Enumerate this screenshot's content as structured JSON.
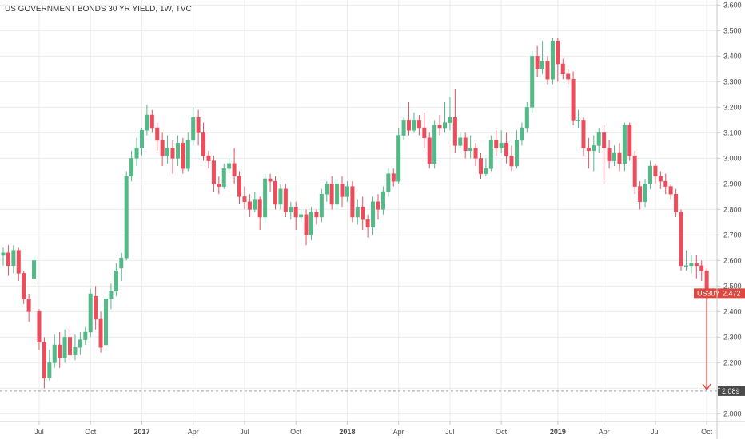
{
  "chart_data": {
    "type": "candlestick",
    "title": "US GOVERNMENT BONDS 30 YR YIELD, 1W, TVC",
    "ylim": [
      1.97,
      3.62
    ],
    "yticks": [
      2.0,
      2.1,
      2.2,
      2.3,
      2.4,
      2.5,
      2.6,
      2.7,
      2.8,
      2.9,
      3.0,
      3.1,
      3.2,
      3.3,
      3.4,
      3.5,
      3.6
    ],
    "ytick_labels": [
      "2.000",
      "2.100",
      "2.200",
      "2.300",
      "2.400",
      "2.500",
      "2.600",
      "2.700",
      "2.800",
      "2.900",
      "3.000",
      "3.100",
      "3.200",
      "3.300",
      "3.400",
      "3.500",
      "3.600"
    ],
    "x_labels": [
      {
        "label": "Jul",
        "week": 7,
        "bold": false
      },
      {
        "label": "Oct",
        "week": 17,
        "bold": false
      },
      {
        "label": "2017",
        "week": 27,
        "bold": true
      },
      {
        "label": "Apr",
        "week": 37,
        "bold": false
      },
      {
        "label": "Jul",
        "week": 47,
        "bold": false
      },
      {
        "label": "Oct",
        "week": 57,
        "bold": false
      },
      {
        "label": "2018",
        "week": 67,
        "bold": true
      },
      {
        "label": "Apr",
        "week": 77,
        "bold": false
      },
      {
        "label": "Jul",
        "week": 87,
        "bold": false
      },
      {
        "label": "Oct",
        "week": 97,
        "bold": false
      },
      {
        "label": "2019",
        "week": 108,
        "bold": true
      },
      {
        "label": "Apr",
        "week": 117,
        "bold": false
      },
      {
        "label": "Jul",
        "week": 127,
        "bold": false
      },
      {
        "label": "Oct",
        "week": 137,
        "bold": false
      }
    ],
    "x_range": [
      0,
      139
    ],
    "candles": [
      [
        2.62,
        2.63,
        2.58,
        2.65
      ],
      [
        2.63,
        2.58,
        2.54,
        2.66
      ],
      [
        2.58,
        2.64,
        2.55,
        2.66
      ],
      [
        2.64,
        2.55,
        2.52,
        2.65
      ],
      [
        2.55,
        2.45,
        2.43,
        2.56
      ],
      [
        2.45,
        2.4,
        2.36,
        2.47
      ],
      [
        2.53,
        2.6,
        2.51,
        2.62
      ],
      [
        2.4,
        2.28,
        2.25,
        2.41
      ],
      [
        2.28,
        2.14,
        2.1,
        2.3
      ],
      [
        2.14,
        2.2,
        2.13,
        2.25
      ],
      [
        2.2,
        2.27,
        2.18,
        2.31
      ],
      [
        2.27,
        2.22,
        2.18,
        2.32
      ],
      [
        2.22,
        2.3,
        2.2,
        2.33
      ],
      [
        2.3,
        2.23,
        2.21,
        2.34
      ],
      [
        2.23,
        2.26,
        2.21,
        2.31
      ],
      [
        2.26,
        2.29,
        2.23,
        2.32
      ],
      [
        2.29,
        2.32,
        2.27,
        2.34
      ],
      [
        2.32,
        2.47,
        2.3,
        2.49
      ],
      [
        2.46,
        2.37,
        2.33,
        2.5
      ],
      [
        2.37,
        2.26,
        2.24,
        2.4
      ],
      [
        2.27,
        2.45,
        2.26,
        2.46
      ],
      [
        2.45,
        2.48,
        2.41,
        2.51
      ],
      [
        2.48,
        2.56,
        2.46,
        2.59
      ],
      [
        2.57,
        2.61,
        2.52,
        2.63
      ],
      [
        2.61,
        2.93,
        2.6,
        2.95
      ],
      [
        2.93,
        3.0,
        2.91,
        3.03
      ],
      [
        3.0,
        3.04,
        2.97,
        3.08
      ],
      [
        3.04,
        3.11,
        3.01,
        3.12
      ],
      [
        3.11,
        3.17,
        3.09,
        3.21
      ],
      [
        3.17,
        3.12,
        3.1,
        3.19
      ],
      [
        3.12,
        3.07,
        3.03,
        3.14
      ],
      [
        3.07,
        3.01,
        2.97,
        3.1
      ],
      [
        3.01,
        3.04,
        2.98,
        3.09
      ],
      [
        3.04,
        3.0,
        2.94,
        3.07
      ],
      [
        3.0,
        3.06,
        2.97,
        3.09
      ],
      [
        3.06,
        2.96,
        2.94,
        3.08
      ],
      [
        2.96,
        3.07,
        2.95,
        3.1
      ],
      [
        3.07,
        3.16,
        3.05,
        3.2
      ],
      [
        3.16,
        3.1,
        3.05,
        3.19
      ],
      [
        3.1,
        3.01,
        2.99,
        3.14
      ],
      [
        3.01,
        2.99,
        2.96,
        3.03
      ],
      [
        2.99,
        2.9,
        2.87,
        3.01
      ],
      [
        2.9,
        2.89,
        2.86,
        2.93
      ],
      [
        2.89,
        2.96,
        2.88,
        2.98
      ],
      [
        2.96,
        2.98,
        2.94,
        3.0
      ],
      [
        2.98,
        2.93,
        2.9,
        3.04
      ],
      [
        2.93,
        2.85,
        2.82,
        2.95
      ],
      [
        2.85,
        2.83,
        2.8,
        2.89
      ],
      [
        2.83,
        2.8,
        2.77,
        2.86
      ],
      [
        2.8,
        2.84,
        2.79,
        2.87
      ],
      [
        2.84,
        2.77,
        2.72,
        2.85
      ],
      [
        2.77,
        2.92,
        2.75,
        2.94
      ],
      [
        2.92,
        2.91,
        2.87,
        2.94
      ],
      [
        2.91,
        2.82,
        2.8,
        2.93
      ],
      [
        2.82,
        2.88,
        2.8,
        2.9
      ],
      [
        2.88,
        2.79,
        2.77,
        2.9
      ],
      [
        2.79,
        2.81,
        2.76,
        2.83
      ],
      [
        2.81,
        2.77,
        2.72,
        2.83
      ],
      [
        2.77,
        2.78,
        2.75,
        2.8
      ],
      [
        2.78,
        2.7,
        2.66,
        2.8
      ],
      [
        2.7,
        2.79,
        2.68,
        2.81
      ],
      [
        2.79,
        2.77,
        2.74,
        2.8
      ],
      [
        2.77,
        2.86,
        2.75,
        2.88
      ],
      [
        2.86,
        2.9,
        2.83,
        2.91
      ],
      [
        2.9,
        2.82,
        2.8,
        2.93
      ],
      [
        2.82,
        2.9,
        2.8,
        2.92
      ],
      [
        2.9,
        2.85,
        2.81,
        2.93
      ],
      [
        2.85,
        2.89,
        2.83,
        2.91
      ],
      [
        2.89,
        2.77,
        2.75,
        2.91
      ],
      [
        2.77,
        2.81,
        2.74,
        2.84
      ],
      [
        2.81,
        2.76,
        2.72,
        2.85
      ],
      [
        2.76,
        2.73,
        2.69,
        2.78
      ],
      [
        2.73,
        2.83,
        2.7,
        2.85
      ],
      [
        2.83,
        2.8,
        2.76,
        2.86
      ],
      [
        2.8,
        2.87,
        2.78,
        2.89
      ],
      [
        2.87,
        2.94,
        2.85,
        2.96
      ],
      [
        2.94,
        2.91,
        2.89,
        2.96
      ],
      [
        2.91,
        3.09,
        2.9,
        3.12
      ],
      [
        3.09,
        3.15,
        3.07,
        3.16
      ],
      [
        3.15,
        3.11,
        3.09,
        3.22
      ],
      [
        3.11,
        3.15,
        3.1,
        3.18
      ],
      [
        3.15,
        3.12,
        3.09,
        3.17
      ],
      [
        3.12,
        3.08,
        3.04,
        3.18
      ],
      [
        3.08,
        2.98,
        2.96,
        3.1
      ],
      [
        2.98,
        3.13,
        2.96,
        3.15
      ],
      [
        3.13,
        3.12,
        3.09,
        3.17
      ],
      [
        3.12,
        3.14,
        3.1,
        3.22
      ],
      [
        3.14,
        3.16,
        3.11,
        3.24
      ],
      [
        3.16,
        3.05,
        3.02,
        3.27
      ],
      [
        3.05,
        3.08,
        3.04,
        3.1
      ],
      [
        3.08,
        3.03,
        3.0,
        3.1
      ],
      [
        3.03,
        3.04,
        3.0,
        3.09
      ],
      [
        3.04,
        3.0,
        2.97,
        3.06
      ],
      [
        3.0,
        2.94,
        2.92,
        3.02
      ],
      [
        2.94,
        2.96,
        2.93,
        3.0
      ],
      [
        2.96,
        3.07,
        2.95,
        3.09
      ],
      [
        3.07,
        3.04,
        3.01,
        3.11
      ],
      [
        3.04,
        3.06,
        3.02,
        3.11
      ],
      [
        3.06,
        3.01,
        2.98,
        3.1
      ],
      [
        3.01,
        2.97,
        2.95,
        3.05
      ],
      [
        2.97,
        3.07,
        2.96,
        3.11
      ],
      [
        3.07,
        3.12,
        3.05,
        3.14
      ],
      [
        3.12,
        3.2,
        3.1,
        3.22
      ],
      [
        3.2,
        3.4,
        3.18,
        3.42
      ],
      [
        3.4,
        3.35,
        3.32,
        3.44
      ],
      [
        3.35,
        3.38,
        3.33,
        3.46
      ],
      [
        3.38,
        3.31,
        3.29,
        3.4
      ],
      [
        3.31,
        3.46,
        3.29,
        3.47
      ],
      [
        3.46,
        3.37,
        3.3,
        3.47
      ],
      [
        3.37,
        3.33,
        3.31,
        3.39
      ],
      [
        3.33,
        3.31,
        3.29,
        3.35
      ],
      [
        3.31,
        3.15,
        3.13,
        3.34
      ],
      [
        3.15,
        3.15,
        3.12,
        3.19
      ],
      [
        3.15,
        3.04,
        3.01,
        3.16
      ],
      [
        3.04,
        3.03,
        2.96,
        3.08
      ],
      [
        3.03,
        3.05,
        2.95,
        3.09
      ],
      [
        3.05,
        3.1,
        3.02,
        3.12
      ],
      [
        3.1,
        3.04,
        2.9,
        3.13
      ],
      [
        3.04,
        2.99,
        2.96,
        3.07
      ],
      [
        2.99,
        3.02,
        2.97,
        3.05
      ],
      [
        3.02,
        2.98,
        2.95,
        3.06
      ],
      [
        2.98,
        3.13,
        2.95,
        3.14
      ],
      [
        3.13,
        3.01,
        2.99,
        3.14
      ],
      [
        3.01,
        2.89,
        2.86,
        3.03
      ],
      [
        2.89,
        2.83,
        2.8,
        2.91
      ],
      [
        2.83,
        2.9,
        2.81,
        2.92
      ],
      [
        2.9,
        2.97,
        2.88,
        2.99
      ],
      [
        2.97,
        2.93,
        2.9,
        2.98
      ],
      [
        2.93,
        2.91,
        2.88,
        2.95
      ],
      [
        2.91,
        2.89,
        2.86,
        2.94
      ],
      [
        2.89,
        2.86,
        2.84,
        2.9
      ],
      [
        2.86,
        2.79,
        2.77,
        2.88
      ],
      [
        2.79,
        2.58,
        2.56,
        2.8
      ],
      [
        2.58,
        2.58,
        2.56,
        2.64
      ],
      [
        2.58,
        2.59,
        2.55,
        2.62
      ],
      [
        2.59,
        2.58,
        2.53,
        2.62
      ],
      [
        2.58,
        2.56,
        2.52,
        2.6
      ],
      [
        2.56,
        2.47,
        2.46,
        2.57
      ]
    ],
    "colors": {
      "up": "#53b987",
      "down": "#eb4d5c",
      "arrow": "#e0473e",
      "grid": "#ececec",
      "axis": "#c8c8c8",
      "dashed": "#9e9e9e"
    },
    "current_badge": {
      "symbol": "US30Y",
      "value": "2.472",
      "price": 2.472,
      "color": "#e0473e"
    },
    "target_badge": {
      "value": "2.089",
      "price": 2.089,
      "color": "#4b4b4b"
    },
    "arrow": {
      "from_price": 2.465,
      "to_price": 2.095,
      "week": 137
    }
  }
}
